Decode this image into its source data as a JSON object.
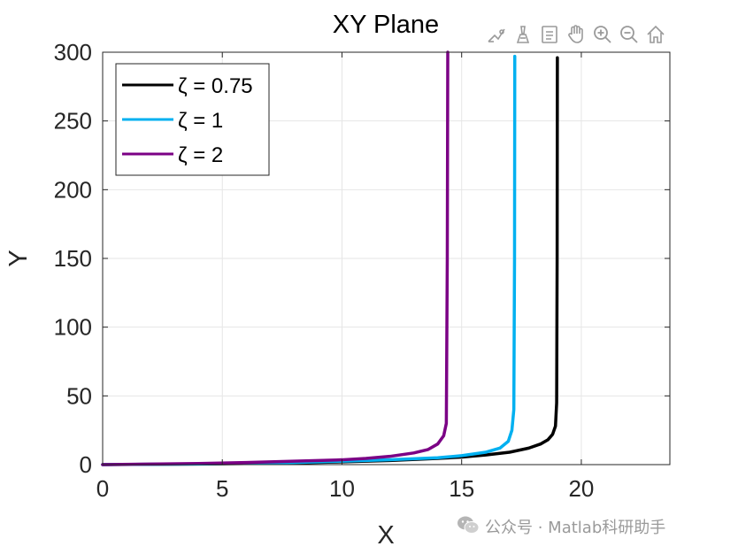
{
  "toolbar": {
    "icons": [
      "brush-icon",
      "data-cursor-icon",
      "legend-toggle-icon",
      "pan-hand-icon",
      "zoom-in-icon",
      "zoom-out-icon",
      "home-icon"
    ]
  },
  "watermark": {
    "icon": "wechat-icon",
    "text": "公众号 · Matlab科研助手"
  },
  "chart_data": {
    "type": "line",
    "title": "XY Plane",
    "xlabel": "X",
    "ylabel": "Y",
    "xlim": [
      0,
      23.7
    ],
    "ylim": [
      0,
      300
    ],
    "xticks": [
      0,
      5,
      10,
      15,
      20
    ],
    "yticks": [
      0,
      50,
      100,
      150,
      200,
      250,
      300
    ],
    "grid": true,
    "legend_position": "top-left",
    "series": [
      {
        "name": "ζ = 0.75",
        "color": "#000000",
        "x": [
          0,
          4,
          8,
          10,
          12,
          14,
          15,
          16,
          17,
          17.8,
          18.3,
          18.6,
          18.8,
          18.92,
          18.97,
          18.99,
          19.0
        ],
        "y": [
          0,
          0.4,
          1.2,
          2,
          3,
          4.5,
          5.5,
          7,
          9,
          12,
          15,
          18,
          22,
          28,
          45,
          150,
          296
        ]
      },
      {
        "name": "ζ = 1",
        "color": "#00B0F0",
        "x": [
          0,
          4,
          8,
          10,
          12,
          14,
          15,
          16,
          16.6,
          16.95,
          17.1,
          17.18,
          17.21,
          17.22
        ],
        "y": [
          0,
          0.5,
          1.5,
          2.5,
          3.5,
          5,
          6.5,
          9,
          12,
          17,
          25,
          40,
          150,
          297
        ]
      },
      {
        "name": "ζ = 2",
        "color": "#7B0085",
        "x": [
          0,
          4,
          6,
          8,
          10,
          11,
          12,
          13,
          13.6,
          14.0,
          14.25,
          14.36,
          14.4,
          14.42
        ],
        "y": [
          0,
          0.8,
          1.5,
          2.5,
          3.5,
          4.5,
          6,
          8.5,
          11,
          15,
          21,
          30,
          150,
          300
        ]
      }
    ]
  }
}
